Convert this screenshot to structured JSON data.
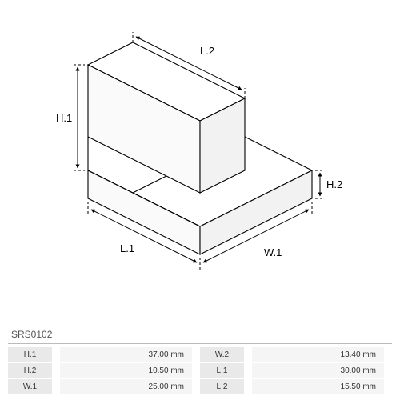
{
  "diagram": {
    "type": "isometric-dimensioned-part",
    "background_color": "#ffffff",
    "stroke_color": "#000000",
    "fill_top": "#ffffff",
    "fill_side": "#f2f2f2",
    "fill_front": "#fafafa",
    "stroke_width": 1.1,
    "labels": {
      "H1": "H.1",
      "H2": "H.2",
      "W1": "W.1",
      "L1": "L.1",
      "L2": "L.2"
    }
  },
  "part_number": "SRS0102",
  "specs": [
    {
      "a_label": "H.1",
      "a_value": "37.00 mm",
      "b_label": "W.2",
      "b_value": "13.40 mm"
    },
    {
      "a_label": "H.2",
      "a_value": "10.50 mm",
      "b_label": "L.1",
      "b_value": "30.00 mm"
    },
    {
      "a_label": "W.1",
      "a_value": "25.00 mm",
      "b_label": "L.2",
      "b_value": "15.50 mm"
    }
  ],
  "colors": {
    "row_label_bg": "#e9e9e9",
    "row_value_bg": "#f5f5f5",
    "separator": "#bbbbbb",
    "text": "#333333"
  }
}
